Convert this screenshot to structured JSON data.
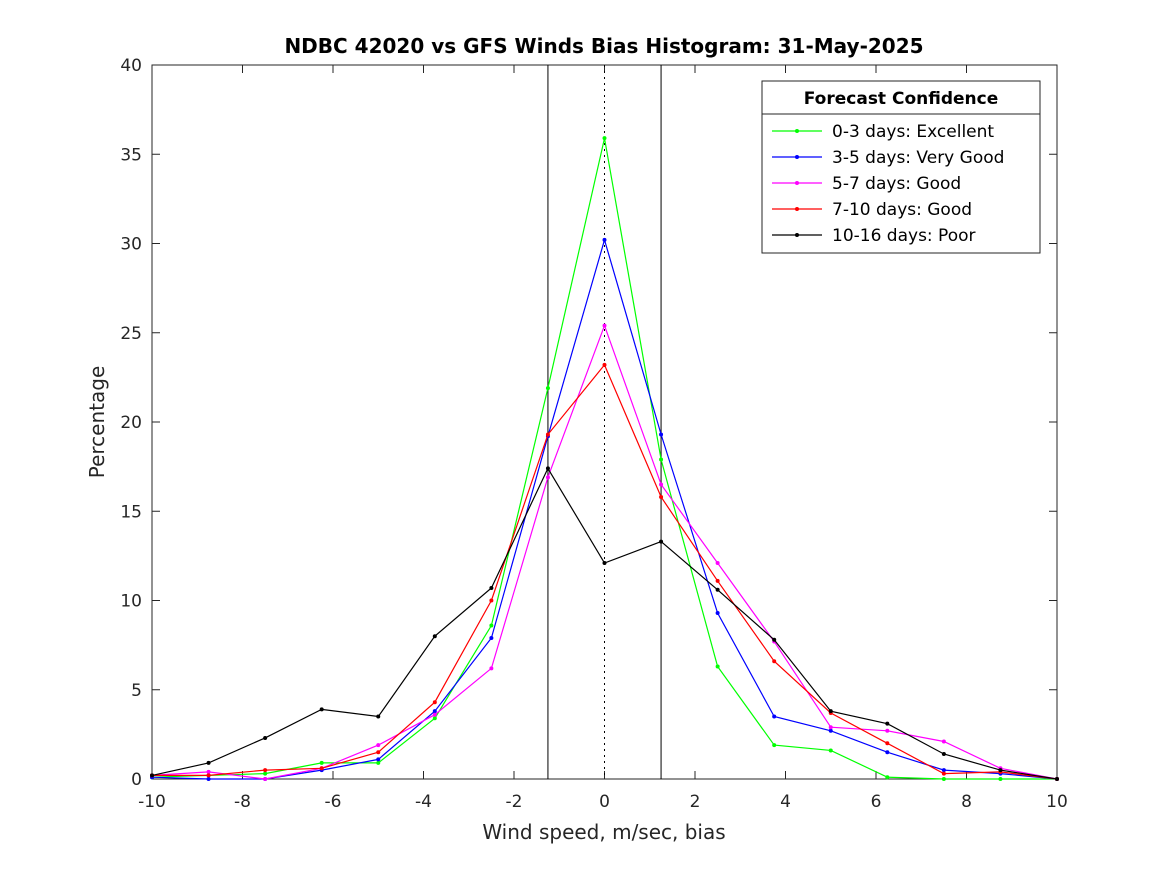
{
  "chart_data": {
    "type": "line",
    "title": "NDBC 42020 vs GFS Winds Bias Histogram: 31-May-2025",
    "xlabel": "Wind speed, m/sec, bias",
    "ylabel": "Percentage",
    "xlim": [
      -10,
      10
    ],
    "ylim": [
      0,
      40
    ],
    "xticks": [
      -10,
      -8,
      -6,
      -4,
      -2,
      0,
      2,
      4,
      6,
      8,
      10
    ],
    "yticks": [
      0,
      5,
      10,
      15,
      20,
      25,
      30,
      35,
      40
    ],
    "grid": false,
    "x": [
      -10,
      -8.75,
      -7.5,
      -6.25,
      -5,
      -3.75,
      -2.5,
      -1.25,
      0,
      1.25,
      2.5,
      3.75,
      5,
      6.25,
      7.5,
      8.75,
      10
    ],
    "reference_lines": [
      {
        "x": -1.25,
        "style": "solid"
      },
      {
        "x": 0,
        "style": "dotted"
      },
      {
        "x": 1.25,
        "style": "solid"
      }
    ],
    "legend": {
      "title": "Forecast Confidence",
      "placement": "top-right"
    },
    "series": [
      {
        "name": "0-3 days: Excellent",
        "color": "#00ff00",
        "values": [
          0.1,
          0.2,
          0.3,
          0.9,
          0.9,
          3.4,
          8.6,
          21.9,
          35.9,
          17.9,
          6.3,
          1.9,
          1.6,
          0.1,
          0.0,
          0.0,
          0.0
        ]
      },
      {
        "name": "3-5 days: Very Good",
        "color": "#0000ff",
        "values": [
          0.1,
          0.0,
          0.0,
          0.5,
          1.1,
          3.8,
          7.9,
          19.2,
          30.2,
          19.3,
          9.3,
          3.5,
          2.7,
          1.5,
          0.5,
          0.3,
          0.0
        ]
      },
      {
        "name": "5-7 days: Good",
        "color": "#ff00ff",
        "values": [
          0.2,
          0.4,
          0.0,
          0.6,
          1.9,
          3.6,
          6.2,
          16.9,
          25.4,
          16.5,
          12.1,
          7.7,
          2.9,
          2.7,
          2.1,
          0.6,
          0.0
        ]
      },
      {
        "name": "7-10 days: Good",
        "color": "#ff0000",
        "values": [
          0.2,
          0.2,
          0.5,
          0.6,
          1.5,
          4.3,
          10.0,
          19.3,
          23.2,
          15.8,
          11.1,
          6.6,
          3.7,
          2.0,
          0.3,
          0.4,
          0.0
        ]
      },
      {
        "name": "10-16 days: Poor",
        "color": "#000000",
        "values": [
          0.2,
          0.9,
          2.3,
          3.9,
          3.5,
          8.0,
          10.7,
          17.4,
          12.1,
          13.3,
          10.6,
          7.8,
          3.8,
          3.1,
          1.4,
          0.5,
          0.0
        ]
      }
    ]
  }
}
